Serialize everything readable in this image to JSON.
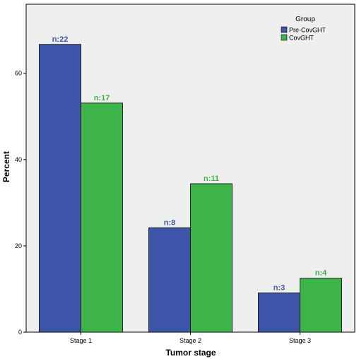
{
  "chart_data": {
    "type": "bar",
    "title": "",
    "xlabel": "Tumor stage",
    "ylabel": "Percent",
    "ylim": [
      0,
      76
    ],
    "yticks": [
      0,
      20,
      40,
      60
    ],
    "categories": [
      "Stage 1",
      "Stage 2",
      "Stage 3"
    ],
    "grid": false,
    "legend": {
      "title": "Group",
      "placement": "top-right"
    },
    "series": [
      {
        "name": "Pre-CovGHT",
        "color": "#3d55a8",
        "label_color": "#3d55a8",
        "values": [
          66.7,
          24.2,
          9.1
        ],
        "labels": [
          "n:22",
          "n:8",
          "n:3"
        ]
      },
      {
        "name": "CovGHT",
        "color": "#3cb44a",
        "label_color": "#3cb44a",
        "values": [
          53.1,
          34.4,
          12.5
        ],
        "labels": [
          "n:17",
          "n:11",
          "n:4"
        ]
      }
    ],
    "plot_background": "#efefef"
  }
}
